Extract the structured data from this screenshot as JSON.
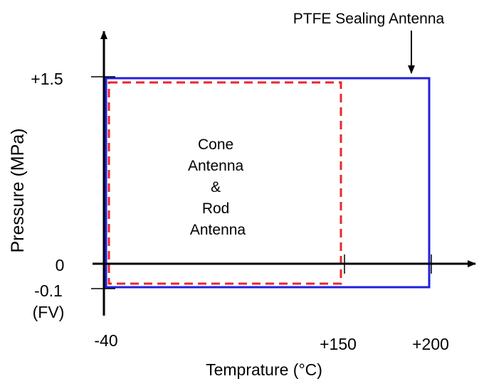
{
  "chart_data": {
    "type": "diagram",
    "xlabel": "Temprature (°C)",
    "ylabel": "Pressure (MPa)",
    "x_ticks": [
      {
        "label": "-40",
        "value": -40
      },
      {
        "label": "+150",
        "value": 150
      },
      {
        "label": "+200",
        "value": 200
      }
    ],
    "y_ticks": [
      {
        "label": "+1.5",
        "value": 1.5
      },
      {
        "label": "0",
        "value": 0
      },
      {
        "label": "-0.1",
        "value": -0.1
      }
    ],
    "y_tick_note": "(FV)",
    "regions": [
      {
        "name": "PTFE Sealing Antenna",
        "x_range": [
          -40,
          200
        ],
        "y_range": [
          -0.1,
          1.5
        ],
        "color": "#1f1fe0",
        "style": "solid"
      },
      {
        "name": "Cone Antenna & Rod Antenna",
        "label_lines": [
          "Cone",
          "Antenna",
          "&",
          "Rod",
          "Antenna"
        ],
        "x_range": [
          -40,
          150
        ],
        "y_range": [
          -0.1,
          1.5
        ],
        "color": "#e8282a",
        "style": "dashed"
      }
    ],
    "annotation": {
      "text": "PTFE Sealing Antenna",
      "points_to": "PTFE Sealing Antenna"
    }
  }
}
